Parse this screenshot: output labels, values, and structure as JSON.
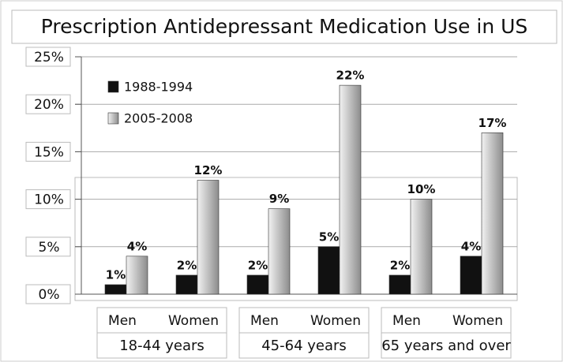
{
  "chart_data": {
    "type": "bar",
    "title": "Prescription Antidepressant Medication Use in US",
    "categories": [
      "Men",
      "Women",
      "Men",
      "Women",
      "Men",
      "Women"
    ],
    "category_groups": [
      "18-44 years",
      "45-64 years",
      "65 years and over"
    ],
    "series": [
      {
        "name": "1988-1994",
        "color": "#111111",
        "values": [
          1,
          2,
          2,
          5,
          2,
          4
        ],
        "value_labels": [
          "1%",
          "2%",
          "2%",
          "5%",
          "2%",
          "4%"
        ]
      },
      {
        "name": "2005-2008",
        "color": "#8c8c8c",
        "values": [
          4,
          12,
          9,
          22,
          10,
          17
        ],
        "value_labels": [
          "4%",
          "12%",
          "9%",
          "22%",
          "10%",
          "17%"
        ]
      }
    ],
    "ylim": [
      0,
      25
    ],
    "yticks": [
      {
        "value": 0,
        "label": "0%"
      },
      {
        "value": 5,
        "label": "5%"
      },
      {
        "value": 10,
        "label": "10%"
      },
      {
        "value": 15,
        "label": "15%"
      },
      {
        "value": 20,
        "label": "20%"
      },
      {
        "value": 25,
        "label": "25%"
      }
    ],
    "grid": true,
    "legend": "upper left"
  }
}
